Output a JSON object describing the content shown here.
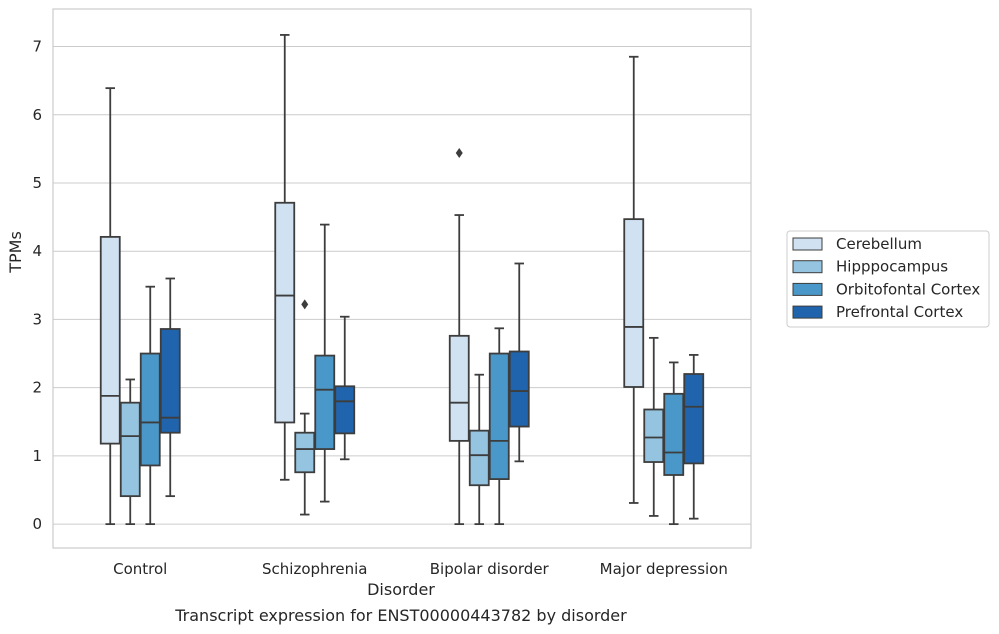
{
  "chart_data": {
    "type": "box",
    "xlabel": "Disorder",
    "ylabel": "TPMs",
    "caption": "Transcript expression for ENST00000443782 by disorder",
    "categories": [
      "Control",
      "Schizophrenia",
      "Bipolar disorder",
      "Major depression"
    ],
    "ylim": [
      -0.35,
      7.55
    ],
    "yticks": [
      0,
      1,
      2,
      3,
      4,
      5,
      6,
      7
    ],
    "grid": true,
    "legend_position": "right",
    "series": [
      {
        "name": "Cerebellum",
        "color": "#d0e1f2",
        "boxes": [
          {
            "whislo": 0.0,
            "q1": 1.18,
            "median": 1.88,
            "q3": 4.21,
            "whishi": 6.39,
            "fliers": []
          },
          {
            "whislo": 0.65,
            "q1": 1.49,
            "median": 3.35,
            "q3": 4.71,
            "whishi": 7.17,
            "fliers": []
          },
          {
            "whislo": 0.0,
            "q1": 1.22,
            "median": 1.78,
            "q3": 2.76,
            "whishi": 4.53,
            "fliers": [
              5.44
            ]
          },
          {
            "whislo": 0.31,
            "q1": 2.01,
            "median": 2.89,
            "q3": 4.47,
            "whishi": 6.85,
            "fliers": []
          }
        ]
      },
      {
        "name": "Hipppocampus",
        "color": "#94c4df",
        "boxes": [
          {
            "whislo": 0.0,
            "q1": 0.41,
            "median": 1.29,
            "q3": 1.78,
            "whishi": 2.12,
            "fliers": []
          },
          {
            "whislo": 0.14,
            "q1": 0.76,
            "median": 1.1,
            "q3": 1.34,
            "whishi": 1.62,
            "fliers": [
              3.22
            ]
          },
          {
            "whislo": 0.0,
            "q1": 0.57,
            "median": 1.01,
            "q3": 1.37,
            "whishi": 2.19,
            "fliers": []
          },
          {
            "whislo": 0.12,
            "q1": 0.91,
            "median": 1.27,
            "q3": 1.68,
            "whishi": 2.73,
            "fliers": []
          }
        ]
      },
      {
        "name": "Orbitofontal Cortex",
        "color": "#4a98c9",
        "boxes": [
          {
            "whislo": 0.0,
            "q1": 0.86,
            "median": 1.49,
            "q3": 2.5,
            "whishi": 3.48,
            "fliers": []
          },
          {
            "whislo": 0.33,
            "q1": 1.1,
            "median": 1.97,
            "q3": 2.47,
            "whishi": 4.39,
            "fliers": []
          },
          {
            "whislo": 0.0,
            "q1": 0.66,
            "median": 1.22,
            "q3": 2.5,
            "whishi": 2.87,
            "fliers": []
          },
          {
            "whislo": 0.0,
            "q1": 0.72,
            "median": 1.05,
            "q3": 1.91,
            "whishi": 2.37,
            "fliers": []
          }
        ]
      },
      {
        "name": "Prefrontal Cortex",
        "color": "#2064ad",
        "boxes": [
          {
            "whislo": 0.41,
            "q1": 1.34,
            "median": 1.56,
            "q3": 2.86,
            "whishi": 3.6,
            "fliers": []
          },
          {
            "whislo": 0.95,
            "q1": 1.33,
            "median": 1.8,
            "q3": 2.02,
            "whishi": 3.04,
            "fliers": []
          },
          {
            "whislo": 0.92,
            "q1": 1.43,
            "median": 1.95,
            "q3": 2.53,
            "whishi": 3.82,
            "fliers": []
          },
          {
            "whislo": 0.08,
            "q1": 0.89,
            "median": 1.72,
            "q3": 2.2,
            "whishi": 2.48,
            "fliers": []
          }
        ]
      }
    ]
  }
}
